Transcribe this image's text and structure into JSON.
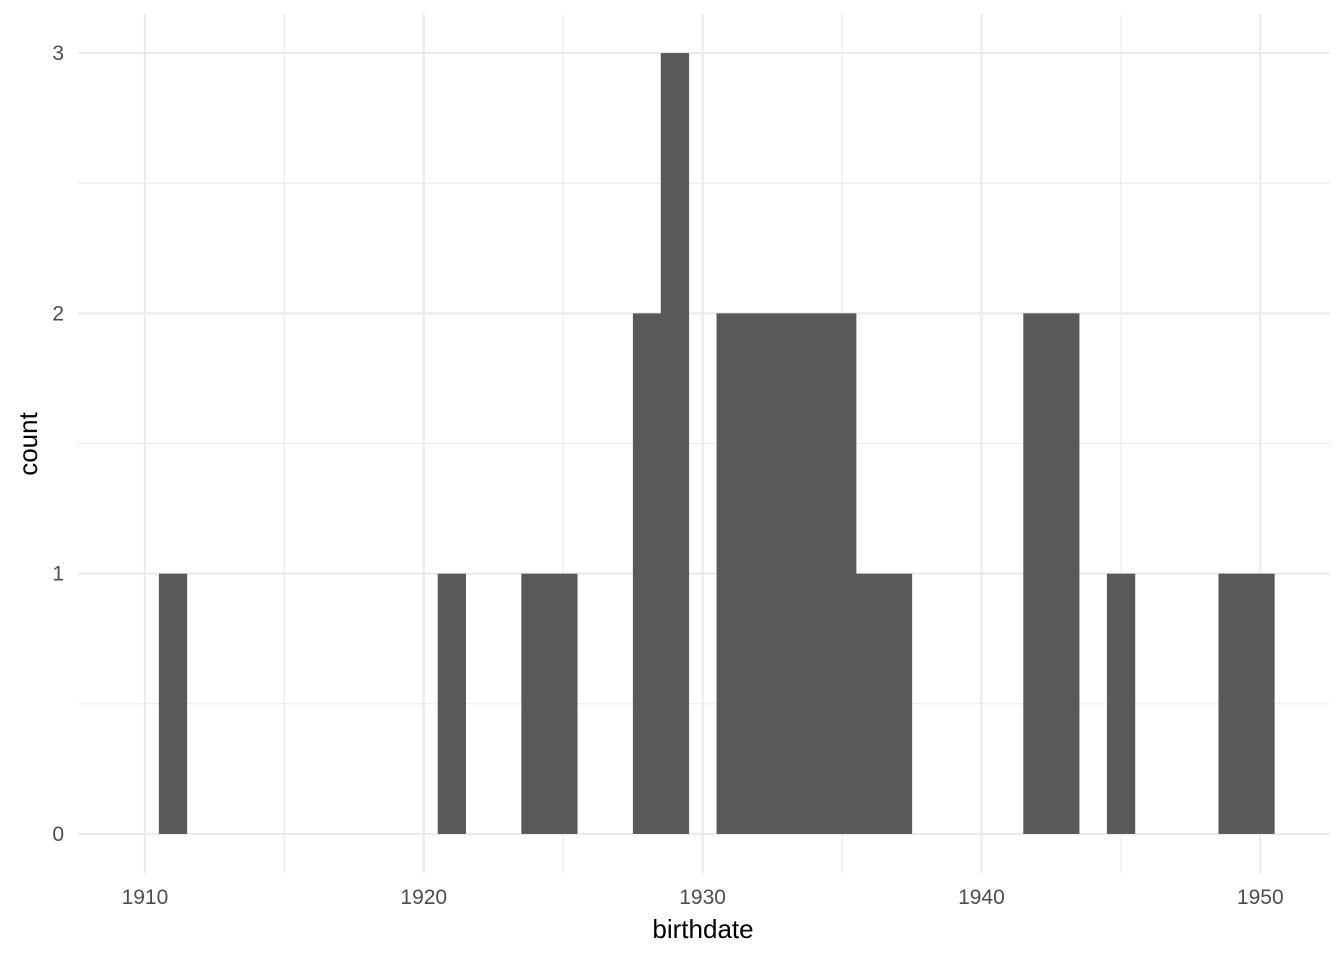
{
  "chart_data": {
    "type": "bar",
    "subtype": "histogram",
    "title": "",
    "xlabel": "birthdate",
    "ylabel": "count",
    "bin_width": 1,
    "xlim": [
      1907.6,
      1952.5
    ],
    "ylim": [
      -0.15,
      3.15
    ],
    "x_ticks": [
      1910,
      1920,
      1930,
      1940,
      1950
    ],
    "x_tick_labels": [
      "1910",
      "1920",
      "1930",
      "1940",
      "1950"
    ],
    "y_ticks": [
      0,
      1,
      2,
      3
    ],
    "y_tick_labels": [
      "0",
      "1",
      "2",
      "3"
    ],
    "grid": true,
    "legend": "none",
    "bar_color": "#595959",
    "bins": [
      {
        "x": 1911,
        "count": 1
      },
      {
        "x": 1921,
        "count": 1
      },
      {
        "x": 1924,
        "count": 1
      },
      {
        "x": 1925,
        "count": 1
      },
      {
        "x": 1928,
        "count": 2
      },
      {
        "x": 1929,
        "count": 3
      },
      {
        "x": 1931,
        "count": 2
      },
      {
        "x": 1932,
        "count": 2
      },
      {
        "x": 1933,
        "count": 2
      },
      {
        "x": 1934,
        "count": 2
      },
      {
        "x": 1935,
        "count": 2
      },
      {
        "x": 1936,
        "count": 1
      },
      {
        "x": 1937,
        "count": 1
      },
      {
        "x": 1942,
        "count": 2
      },
      {
        "x": 1943,
        "count": 2
      },
      {
        "x": 1945,
        "count": 1
      },
      {
        "x": 1949,
        "count": 1
      },
      {
        "x": 1950,
        "count": 1
      }
    ]
  }
}
